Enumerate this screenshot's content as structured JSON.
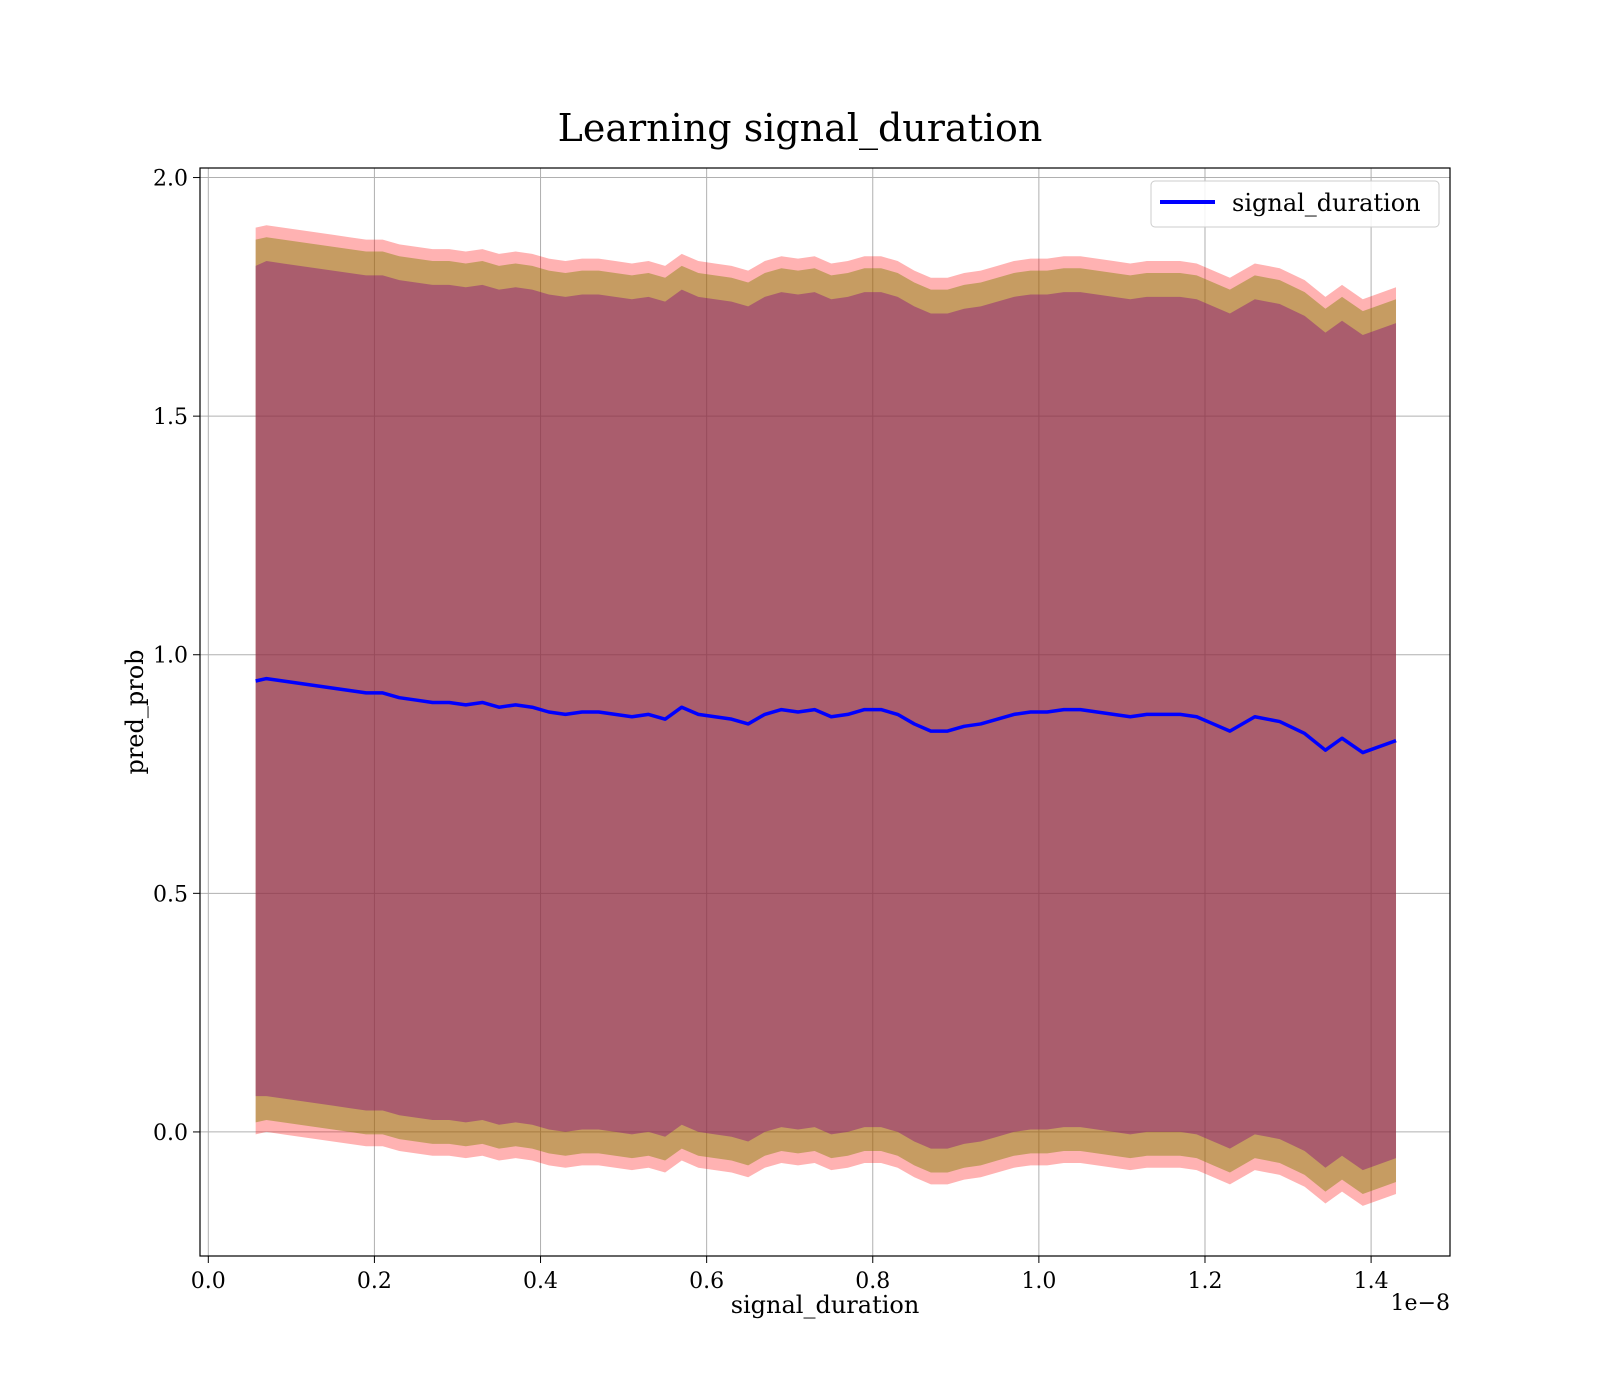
{
  "chart_data": {
    "type": "line",
    "title": "Learning signal_duration",
    "xlabel": "signal_duration",
    "ylabel": "pred_prob",
    "x_offset_text": "1e−8",
    "xlim": [
      -0.01,
      1.495
    ],
    "ylim": [
      -0.26,
      2.02
    ],
    "x_ticks": [
      0.0,
      0.2,
      0.4,
      0.6,
      0.8,
      1.0,
      1.2,
      1.4
    ],
    "x_tick_labels": [
      "0.0",
      "0.2",
      "0.4",
      "0.6",
      "0.8",
      "1.0",
      "1.2",
      "1.4"
    ],
    "y_ticks": [
      0.0,
      0.5,
      1.0,
      1.5,
      2.0
    ],
    "y_tick_labels": [
      "0.0",
      "0.5",
      "1.0",
      "1.5",
      "2.0"
    ],
    "grid": true,
    "legend_position": "top-right",
    "series": [
      {
        "name": "signal_duration",
        "color": "#0000ff",
        "x": [
          0.057,
          0.07,
          0.09,
          0.11,
          0.13,
          0.15,
          0.17,
          0.19,
          0.21,
          0.23,
          0.25,
          0.27,
          0.29,
          0.31,
          0.33,
          0.35,
          0.37,
          0.39,
          0.41,
          0.43,
          0.45,
          0.47,
          0.49,
          0.51,
          0.53,
          0.55,
          0.57,
          0.59,
          0.61,
          0.63,
          0.65,
          0.67,
          0.69,
          0.71,
          0.73,
          0.75,
          0.77,
          0.79,
          0.81,
          0.83,
          0.85,
          0.87,
          0.89,
          0.91,
          0.93,
          0.95,
          0.97,
          0.99,
          1.01,
          1.03,
          1.05,
          1.07,
          1.09,
          1.11,
          1.13,
          1.15,
          1.17,
          1.19,
          1.21,
          1.23,
          1.26,
          1.29,
          1.32,
          1.345,
          1.365,
          1.39,
          1.43
        ],
        "y": [
          0.945,
          0.95,
          0.945,
          0.94,
          0.935,
          0.93,
          0.925,
          0.92,
          0.92,
          0.91,
          0.905,
          0.9,
          0.9,
          0.895,
          0.9,
          0.89,
          0.895,
          0.89,
          0.88,
          0.875,
          0.88,
          0.88,
          0.875,
          0.87,
          0.875,
          0.865,
          0.89,
          0.875,
          0.87,
          0.865,
          0.855,
          0.875,
          0.885,
          0.88,
          0.885,
          0.87,
          0.875,
          0.885,
          0.885,
          0.875,
          0.855,
          0.84,
          0.84,
          0.85,
          0.855,
          0.865,
          0.875,
          0.88,
          0.88,
          0.885,
          0.885,
          0.88,
          0.875,
          0.87,
          0.875,
          0.875,
          0.875,
          0.87,
          0.855,
          0.84,
          0.87,
          0.86,
          0.835,
          0.8,
          0.825,
          0.795,
          0.82
        ],
        "band_inner_halfwidth": [
          0.87,
          0.875,
          0.875,
          0.875,
          0.875,
          0.875,
          0.875,
          0.875,
          0.875,
          0.875,
          0.875,
          0.875,
          0.875,
          0.875,
          0.875,
          0.875,
          0.875,
          0.875,
          0.875,
          0.875,
          0.875,
          0.875,
          0.875,
          0.875,
          0.875,
          0.875,
          0.875,
          0.875,
          0.875,
          0.875,
          0.875,
          0.875,
          0.875,
          0.875,
          0.875,
          0.875,
          0.875,
          0.875,
          0.875,
          0.875,
          0.875,
          0.875,
          0.875,
          0.875,
          0.875,
          0.875,
          0.875,
          0.875,
          0.875,
          0.875,
          0.875,
          0.875,
          0.875,
          0.875,
          0.875,
          0.875,
          0.875,
          0.875,
          0.875,
          0.875,
          0.875,
          0.875,
          0.875,
          0.875,
          0.875,
          0.875,
          0.875
        ],
        "band_middle_halfwidth": [
          0.925,
          0.925,
          0.925,
          0.925,
          0.925,
          0.925,
          0.925,
          0.925,
          0.925,
          0.925,
          0.925,
          0.925,
          0.925,
          0.925,
          0.925,
          0.925,
          0.925,
          0.925,
          0.925,
          0.925,
          0.925,
          0.925,
          0.925,
          0.925,
          0.925,
          0.925,
          0.925,
          0.925,
          0.925,
          0.925,
          0.925,
          0.925,
          0.925,
          0.925,
          0.925,
          0.925,
          0.925,
          0.925,
          0.925,
          0.925,
          0.925,
          0.925,
          0.925,
          0.925,
          0.925,
          0.925,
          0.925,
          0.925,
          0.925,
          0.925,
          0.925,
          0.925,
          0.925,
          0.925,
          0.925,
          0.925,
          0.925,
          0.925,
          0.925,
          0.925,
          0.925,
          0.925,
          0.925,
          0.925,
          0.925,
          0.925,
          0.925
        ],
        "band_outer_halfwidth": [
          0.95,
          0.95,
          0.95,
          0.95,
          0.95,
          0.95,
          0.95,
          0.95,
          0.95,
          0.95,
          0.95,
          0.95,
          0.95,
          0.95,
          0.95,
          0.95,
          0.95,
          0.95,
          0.95,
          0.95,
          0.95,
          0.95,
          0.95,
          0.95,
          0.95,
          0.95,
          0.95,
          0.95,
          0.95,
          0.95,
          0.95,
          0.95,
          0.95,
          0.95,
          0.95,
          0.95,
          0.95,
          0.95,
          0.95,
          0.95,
          0.95,
          0.95,
          0.95,
          0.95,
          0.95,
          0.95,
          0.95,
          0.95,
          0.95,
          0.95,
          0.95,
          0.95,
          0.95,
          0.95,
          0.95,
          0.95,
          0.95,
          0.95,
          0.95,
          0.95,
          0.95,
          0.95,
          0.95,
          0.95,
          0.95,
          0.95,
          0.95
        ]
      }
    ],
    "band_colors": {
      "outer": "#ff0000",
      "middle": "#808000",
      "inner": "#800080"
    }
  }
}
